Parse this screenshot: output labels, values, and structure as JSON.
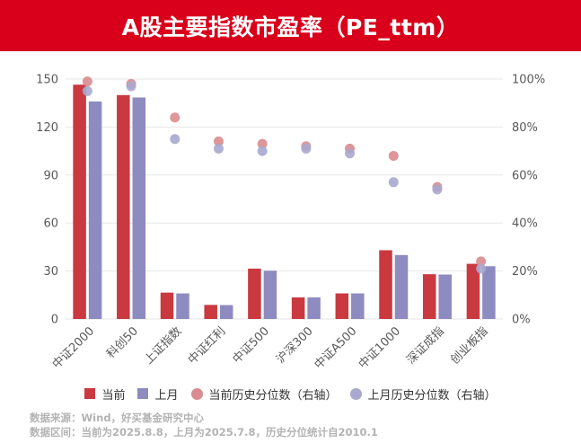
{
  "header": {
    "title": "A股主要指数市盈率（PE_ttm）"
  },
  "chart_data": {
    "type": "bar",
    "categories": [
      "中证2000",
      "科创50",
      "上证指数",
      "中证红利",
      "中证500",
      "沪深300",
      "中证A500",
      "中证1000",
      "深证成指",
      "创业板指"
    ],
    "series": [
      {
        "name": "当前",
        "kind": "bar",
        "axis": "left",
        "color": "#c9393f",
        "values": [
          146.5,
          140,
          16.5,
          8.8,
          31.5,
          13.5,
          16,
          43,
          28,
          34.5
        ]
      },
      {
        "name": "上月",
        "kind": "bar",
        "axis": "left",
        "color": "#8d8bbf",
        "values": [
          136,
          138.5,
          16,
          8.7,
          30.2,
          13.5,
          16,
          40,
          27.8,
          33
        ]
      },
      {
        "name": "当前历史分位数（右轴）",
        "kind": "point",
        "axis": "right",
        "color": "#d98b8f",
        "values": [
          0.99,
          0.98,
          0.84,
          0.74,
          0.73,
          0.72,
          0.71,
          0.68,
          0.55,
          0.24
        ]
      },
      {
        "name": "上月历史分位数（右轴）",
        "kind": "point",
        "axis": "right",
        "color": "#a9a8cf",
        "values": [
          0.95,
          0.97,
          0.75,
          0.71,
          0.7,
          0.71,
          0.69,
          0.57,
          0.54,
          0.21
        ]
      }
    ],
    "y_left": {
      "ylim": [
        0,
        150
      ],
      "ticks": [
        "0",
        "30",
        "60",
        "90",
        "120",
        "150"
      ]
    },
    "y_right": {
      "ylim": [
        0,
        1
      ],
      "ticks": [
        "0%",
        "20%",
        "40%",
        "60%",
        "80%",
        "100%"
      ]
    },
    "grid": true,
    "legend_position": "bottom"
  },
  "footer": {
    "source": "数据来源：Wind，好买基金研究中心",
    "range": "数据区间：当前为2025.8.8，上月为2025.7.8，历史分位统计自2010.1"
  }
}
